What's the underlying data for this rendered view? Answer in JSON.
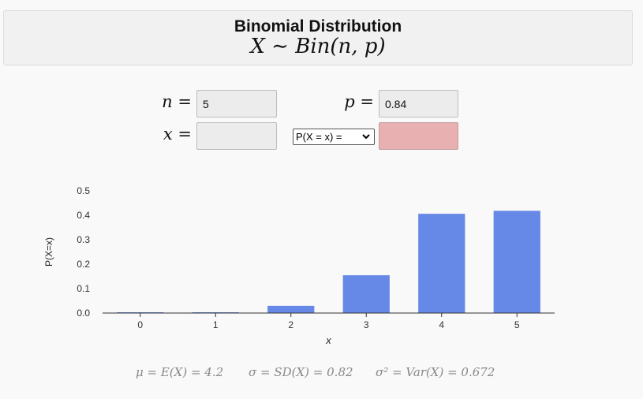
{
  "header": {
    "title": "Binomial Distribution",
    "formula": "X ∼ Bin(n, p)"
  },
  "inputs": {
    "n_label": "n",
    "n_value": "5",
    "p_label": "p",
    "p_value": "0.84",
    "x_label": "x",
    "x_value": "",
    "equals": "="
  },
  "mode_select": {
    "selected": "P(X = x) ="
  },
  "result": {
    "value": ""
  },
  "colors": {
    "bar": "#6688e6",
    "result_bg": "#e8b0b0"
  },
  "chart_data": {
    "type": "bar",
    "categories": [
      "0",
      "1",
      "2",
      "3",
      "4",
      "5"
    ],
    "values": [
      0.0001,
      0.0028,
      0.0295,
      0.1546,
      0.4061,
      0.4182
    ],
    "xlabel": "x",
    "ylabel": "P(X=x)",
    "ylim": [
      0,
      0.5
    ],
    "yticks": [
      "0.0",
      "0.1",
      "0.2",
      "0.3",
      "0.4",
      "0.5"
    ],
    "grid": false
  },
  "stats": {
    "mean": "μ = E(X) = 4.2",
    "sd": "σ = SD(X) = 0.82",
    "var": "σ² = Var(X) = 0.672"
  }
}
